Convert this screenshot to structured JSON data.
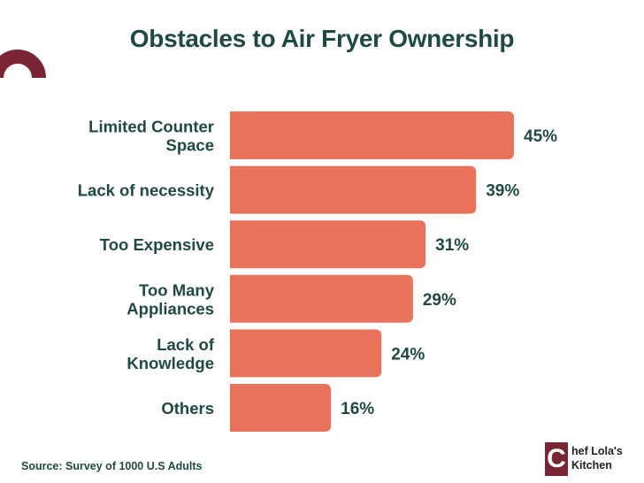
{
  "chart_data": {
    "type": "bar",
    "orientation": "horizontal",
    "title": "Obstacles to Air Fryer Ownership",
    "categories": [
      [
        "Limited Counter",
        "Space"
      ],
      [
        "Lack of necessity"
      ],
      [
        "Too Expensive"
      ],
      [
        "Too Many",
        "Appliances"
      ],
      [
        "Lack of",
        "Knowledge"
      ],
      [
        "Others"
      ]
    ],
    "values": [
      45,
      39,
      31,
      29,
      24,
      16
    ],
    "data_labels": [
      "45%",
      "39%",
      "31%",
      "29%",
      "24%",
      "16%"
    ],
    "unit": "%",
    "xlim": [
      0,
      45
    ],
    "bar_color": "#e8735a",
    "grid": false,
    "legend": "none"
  },
  "footer": {
    "source": "Source: Survey of 1000 U.S Adults"
  },
  "logo": {
    "mark": "C",
    "line1": "hef Lola's",
    "line2": "Kitchen",
    "color": "#7a2535"
  },
  "colors": {
    "text": "#1f4a44",
    "accent": "#7a2535"
  }
}
